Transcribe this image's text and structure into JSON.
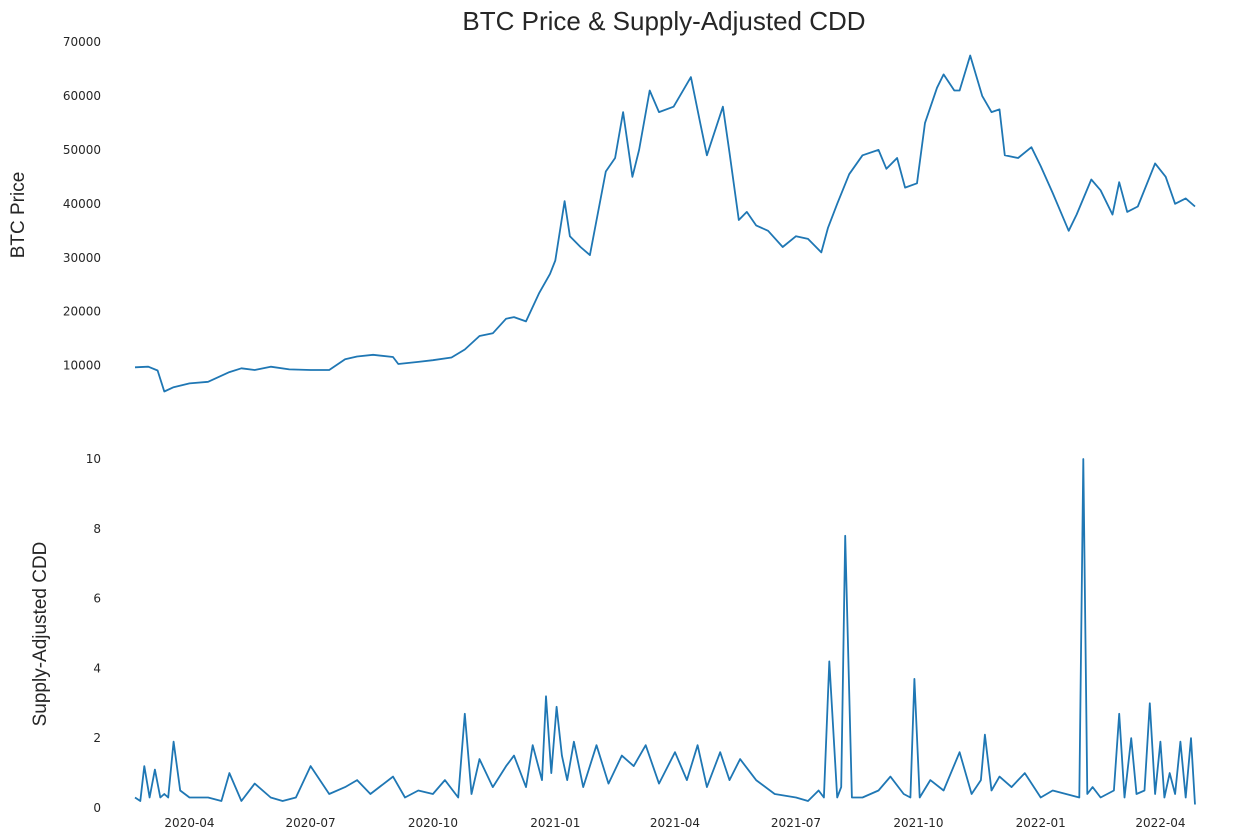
{
  "chart_data": {
    "type": "line",
    "title": "BTC Price & Supply-Adjusted CDD",
    "line_color": "#1f77b4",
    "background": "#ffffff",
    "grid": false,
    "legend": "none",
    "x_ticks": [
      "2020-04",
      "2020-07",
      "2020-10",
      "2021-01",
      "2021-04",
      "2021-07",
      "2021-10",
      "2022-01",
      "2022-04"
    ],
    "panels": [
      {
        "ylabel": "BTC  Price",
        "ylim": [
          4000,
          70000
        ],
        "y_ticks": [
          10000,
          20000,
          30000,
          40000,
          50000,
          60000,
          70000
        ],
        "series": {
          "x": [
            "2020-02-20",
            "2020-03-01",
            "2020-03-08",
            "2020-03-13",
            "2020-03-20",
            "2020-04-01",
            "2020-04-15",
            "2020-05-01",
            "2020-05-10",
            "2020-05-20",
            "2020-06-01",
            "2020-06-15",
            "2020-07-01",
            "2020-07-15",
            "2020-07-27",
            "2020-08-05",
            "2020-08-17",
            "2020-09-01",
            "2020-09-05",
            "2020-09-20",
            "2020-10-01",
            "2020-10-15",
            "2020-10-25",
            "2020-11-05",
            "2020-11-15",
            "2020-11-25",
            "2020-12-01",
            "2020-12-10",
            "2020-12-20",
            "2020-12-28",
            "2021-01-01",
            "2021-01-08",
            "2021-01-12",
            "2021-01-20",
            "2021-01-27",
            "2021-02-08",
            "2021-02-15",
            "2021-02-21",
            "2021-02-28",
            "2021-03-05",
            "2021-03-13",
            "2021-03-20",
            "2021-03-31",
            "2021-04-13",
            "2021-04-20",
            "2021-04-25",
            "2021-05-07",
            "2021-05-12",
            "2021-05-19",
            "2021-05-25",
            "2021-06-01",
            "2021-06-10",
            "2021-06-21",
            "2021-07-01",
            "2021-07-10",
            "2021-07-20",
            "2021-07-25",
            "2021-08-01",
            "2021-08-10",
            "2021-08-20",
            "2021-09-01",
            "2021-09-07",
            "2021-09-15",
            "2021-09-21",
            "2021-09-30",
            "2021-10-06",
            "2021-10-15",
            "2021-10-20",
            "2021-10-28",
            "2021-11-01",
            "2021-11-09",
            "2021-11-18",
            "2021-11-25",
            "2021-12-01",
            "2021-12-05",
            "2021-12-15",
            "2021-12-25",
            "2022-01-01",
            "2022-01-10",
            "2022-01-22",
            "2022-01-28",
            "2022-02-08",
            "2022-02-15",
            "2022-02-24",
            "2022-03-01",
            "2022-03-07",
            "2022-03-15",
            "2022-03-28",
            "2022-04-05",
            "2022-04-12",
            "2022-04-20",
            "2022-04-27"
          ],
          "y": [
            9700,
            9800,
            9100,
            5200,
            6000,
            6700,
            7000,
            8800,
            9500,
            9200,
            9800,
            9300,
            9200,
            9200,
            11200,
            11700,
            12000,
            11600,
            10300,
            10700,
            11000,
            11500,
            13000,
            15500,
            16000,
            18700,
            19000,
            18200,
            23500,
            27000,
            29500,
            40500,
            34000,
            32000,
            30500,
            46000,
            48500,
            57000,
            45000,
            50000,
            61000,
            57000,
            58000,
            63500,
            55000,
            49000,
            58000,
            49500,
            37000,
            38500,
            36000,
            35000,
            32000,
            34000,
            33500,
            31000,
            35500,
            40000,
            45500,
            49000,
            50000,
            46500,
            48500,
            43000,
            43800,
            55000,
            61500,
            64000,
            61000,
            61000,
            67500,
            60000,
            57000,
            57500,
            49000,
            48500,
            50500,
            47000,
            42000,
            35000,
            38000,
            44500,
            42500,
            38000,
            44000,
            38500,
            39500,
            47500,
            45000,
            40000,
            41000,
            39500
          ]
        }
      },
      {
        "ylabel": "Supply-Adjusted CDD",
        "ylim": [
          0,
          10
        ],
        "y_ticks": [
          0,
          2,
          4,
          6,
          8,
          10
        ],
        "series": {
          "x": [
            "2020-02-20",
            "2020-02-24",
            "2020-02-27",
            "2020-03-02",
            "2020-03-06",
            "2020-03-10",
            "2020-03-13",
            "2020-03-16",
            "2020-03-20",
            "2020-03-25",
            "2020-04-01",
            "2020-04-15",
            "2020-04-25",
            "2020-05-01",
            "2020-05-10",
            "2020-05-20",
            "2020-06-01",
            "2020-06-10",
            "2020-06-20",
            "2020-07-01",
            "2020-07-15",
            "2020-07-27",
            "2020-08-05",
            "2020-08-15",
            "2020-09-01",
            "2020-09-10",
            "2020-09-20",
            "2020-10-01",
            "2020-10-10",
            "2020-10-20",
            "2020-10-25",
            "2020-10-30",
            "2020-11-05",
            "2020-11-15",
            "2020-11-25",
            "2020-12-01",
            "2020-12-10",
            "2020-12-15",
            "2020-12-22",
            "2020-12-25",
            "2020-12-29",
            "2021-01-02",
            "2021-01-06",
            "2021-01-10",
            "2021-01-15",
            "2021-01-22",
            "2021-02-01",
            "2021-02-10",
            "2021-02-20",
            "2021-03-01",
            "2021-03-10",
            "2021-03-20",
            "2021-04-01",
            "2021-04-10",
            "2021-04-18",
            "2021-04-25",
            "2021-05-05",
            "2021-05-12",
            "2021-05-20",
            "2021-06-01",
            "2021-06-15",
            "2021-07-01",
            "2021-07-10",
            "2021-07-18",
            "2021-07-22",
            "2021-07-26",
            "2021-08-01",
            "2021-08-04",
            "2021-08-07",
            "2021-08-12",
            "2021-08-20",
            "2021-09-01",
            "2021-09-10",
            "2021-09-20",
            "2021-09-25",
            "2021-09-28",
            "2021-10-02",
            "2021-10-10",
            "2021-10-20",
            "2021-11-01",
            "2021-11-10",
            "2021-11-17",
            "2021-11-20",
            "2021-11-25",
            "2021-12-01",
            "2021-12-10",
            "2021-12-20",
            "2022-01-01",
            "2022-01-10",
            "2022-01-20",
            "2022-01-30",
            "2022-02-02",
            "2022-02-05",
            "2022-02-09",
            "2022-02-15",
            "2022-02-25",
            "2022-03-01",
            "2022-03-05",
            "2022-03-10",
            "2022-03-14",
            "2022-03-20",
            "2022-03-24",
            "2022-03-28",
            "2022-04-01",
            "2022-04-04",
            "2022-04-08",
            "2022-04-12",
            "2022-04-16",
            "2022-04-20",
            "2022-04-24",
            "2022-04-27"
          ],
          "y": [
            0.3,
            0.2,
            1.2,
            0.3,
            1.1,
            0.3,
            0.4,
            0.3,
            1.9,
            0.5,
            0.3,
            0.3,
            0.2,
            1.0,
            0.2,
            0.7,
            0.3,
            0.2,
            0.3,
            1.2,
            0.4,
            0.6,
            0.8,
            0.4,
            0.9,
            0.3,
            0.5,
            0.4,
            0.8,
            0.3,
            2.7,
            0.4,
            1.4,
            0.6,
            1.2,
            1.5,
            0.6,
            1.8,
            0.8,
            3.2,
            1.0,
            2.9,
            1.5,
            0.8,
            1.9,
            0.6,
            1.8,
            0.7,
            1.5,
            1.2,
            1.8,
            0.7,
            1.6,
            0.8,
            1.8,
            0.6,
            1.6,
            0.8,
            1.4,
            0.8,
            0.4,
            0.3,
            0.2,
            0.5,
            0.3,
            4.2,
            0.3,
            0.6,
            7.8,
            0.3,
            0.3,
            0.5,
            0.9,
            0.4,
            0.3,
            3.7,
            0.3,
            0.8,
            0.5,
            1.6,
            0.4,
            0.8,
            2.1,
            0.5,
            0.9,
            0.6,
            1.0,
            0.3,
            0.5,
            0.4,
            0.3,
            10.0,
            0.4,
            0.6,
            0.3,
            0.5,
            2.7,
            0.3,
            2.0,
            0.4,
            0.5,
            3.0,
            0.4,
            1.9,
            0.3,
            1.0,
            0.4,
            1.9,
            0.3,
            2.0,
            0.1
          ]
        }
      }
    ]
  }
}
